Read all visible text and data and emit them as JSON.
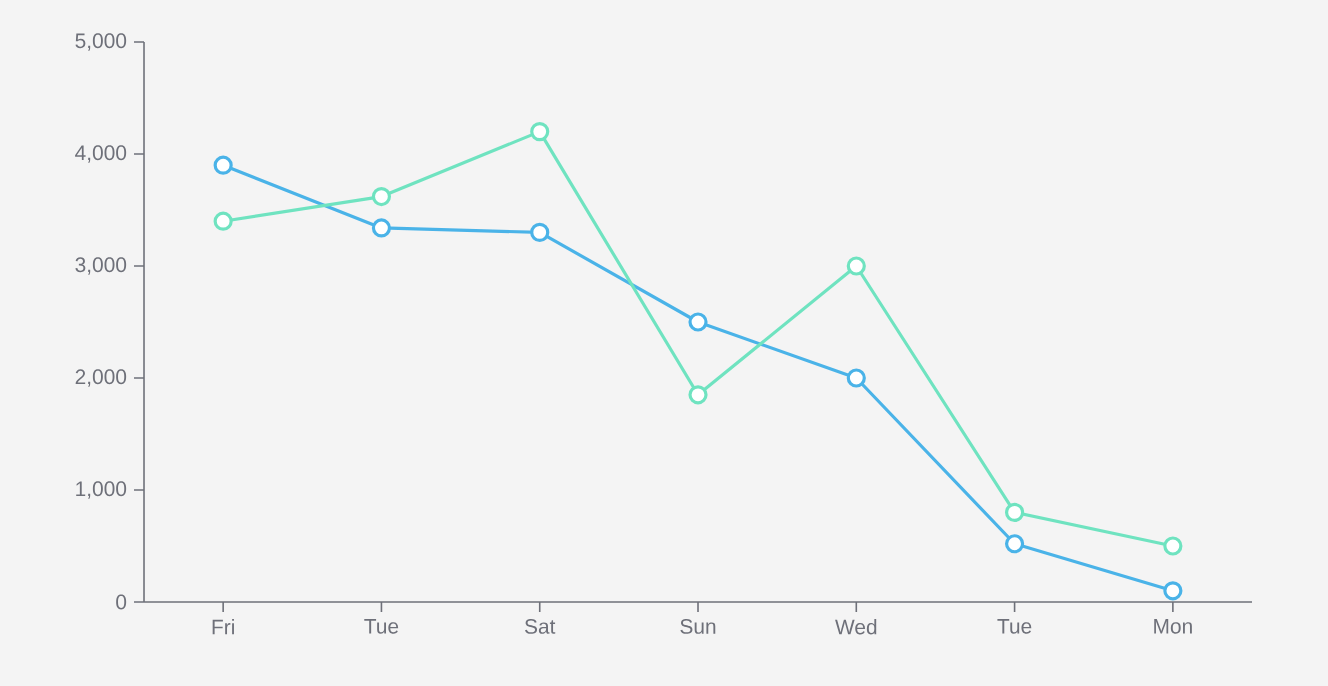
{
  "chart_data": {
    "type": "line",
    "categories": [
      "Fri",
      "Tue",
      "Sat",
      "Sun",
      "Wed",
      "Tue",
      "Mon"
    ],
    "series": [
      {
        "color": "#4ab3e8",
        "values": [
          3900,
          3340,
          3300,
          2500,
          2000,
          520,
          100
        ]
      },
      {
        "color": "#6fe3c0",
        "values": [
          3400,
          3620,
          4200,
          1850,
          3000,
          800,
          500
        ]
      }
    ],
    "ylim": [
      0,
      5000
    ],
    "yticks": [
      0,
      {
        "value": 1000,
        "label": "1,000"
      },
      {
        "value": 2000,
        "label": "2,000"
      },
      {
        "value": 3000,
        "label": "3,000"
      },
      {
        "value": 4000,
        "label": "4,000"
      },
      {
        "value": 5000,
        "label": "5,000"
      }
    ],
    "marker": "circle",
    "line_style": "solid",
    "grid": false
  }
}
